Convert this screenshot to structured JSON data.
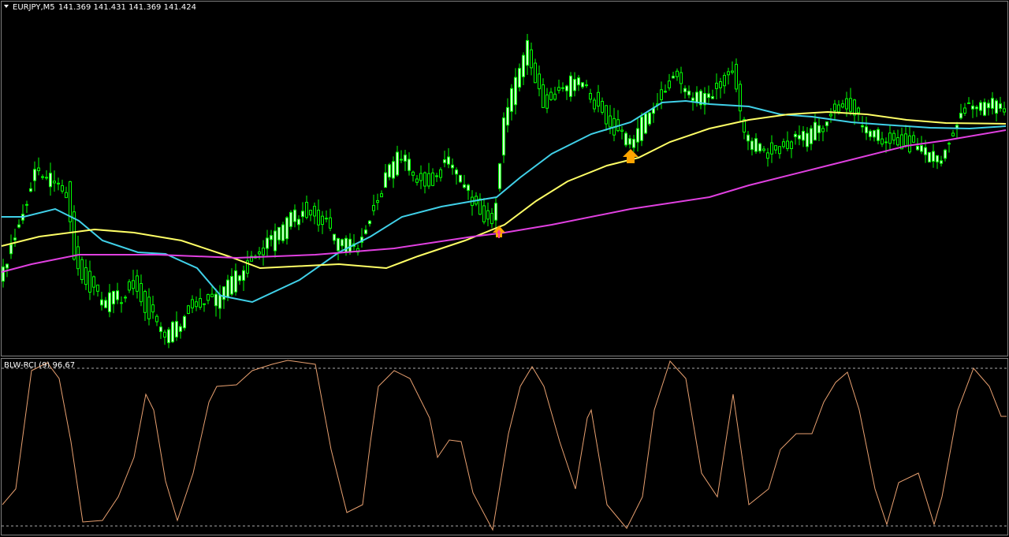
{
  "header": {
    "symbol": "EURJPY,M5",
    "ohlc": "141.369 141.431 141.369 141.424"
  },
  "indicator": {
    "label": "BLW-RCI (9) 96.67"
  }
}
